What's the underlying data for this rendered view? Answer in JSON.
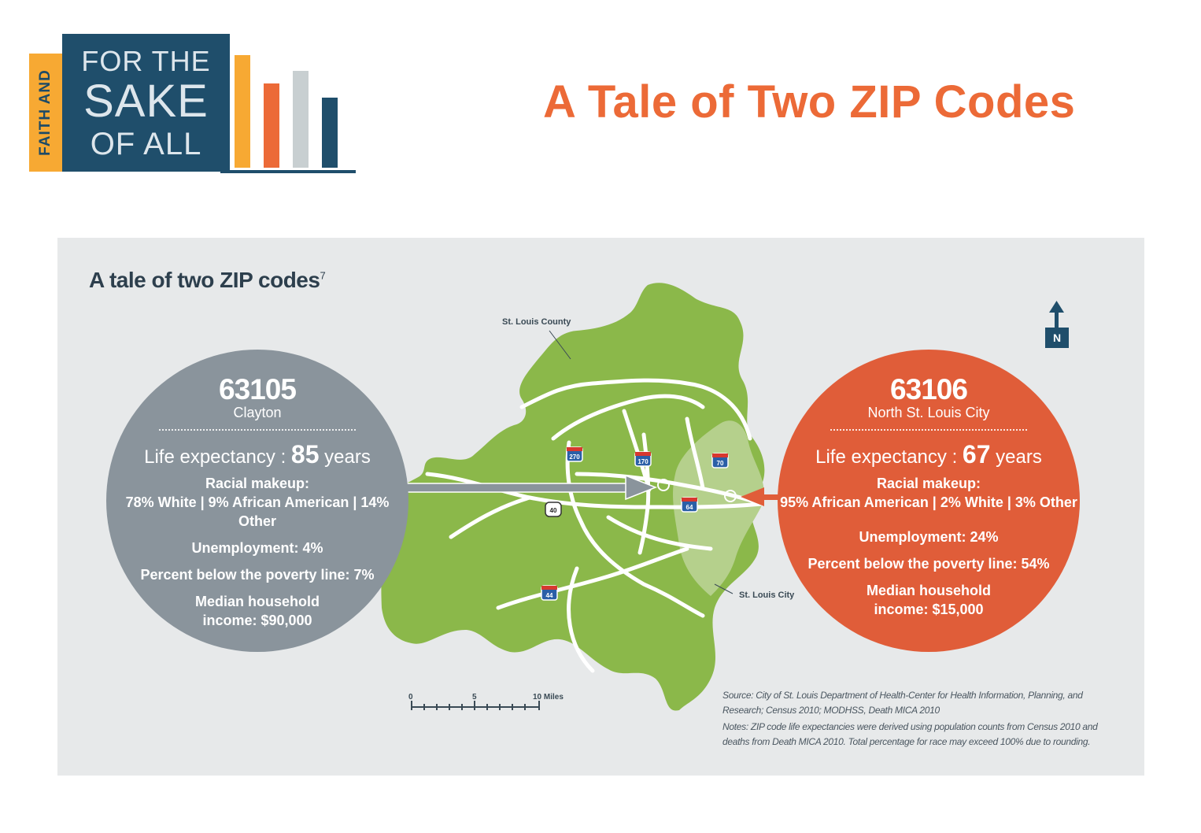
{
  "logo": {
    "side_text": "FAITH AND",
    "line1": "FOR THE",
    "line2": "SAKE",
    "line3": "OF ALL",
    "colors": {
      "navy": "#1f4e6b",
      "yellow": "#f7a933",
      "orange": "#ec6a37",
      "gray": "#c8cfd1"
    }
  },
  "page": {
    "title": "A Tale of Two ZIP Codes",
    "title_color": "#ec6a37"
  },
  "infographic": {
    "title": "A tale of two ZIP codes",
    "title_footnote": "7",
    "map": {
      "county_label": "St. Louis County",
      "city_label": "St. Louis City",
      "county_color": "#8bb84a",
      "city_color": "#b5d08c",
      "compass_label": "N",
      "highway_shields": [
        "270",
        "170",
        "70",
        "40",
        "64",
        "44"
      ],
      "scale": {
        "ticks": [
          "0",
          "5",
          "10 Miles"
        ]
      }
    },
    "left": {
      "zip": "63105",
      "place": "Clayton",
      "life_label": "Life expectancy :",
      "life_value": "85",
      "life_unit": "years",
      "racial_title": "Racial makeup:",
      "racial_detail": "78% White | 9% African American | 14% Other",
      "unemployment": "Unemployment: 4%",
      "poverty": "Percent below the poverty line: 7%",
      "income_line1": "Median household",
      "income_line2": "income: $90,000",
      "color": "#8a949c"
    },
    "right": {
      "zip": "63106",
      "place": "North St. Louis City",
      "life_label": "Life expectancy :",
      "life_value": "67",
      "life_unit": "years",
      "racial_title": "Racial makeup:",
      "racial_detail": "95% African American | 2% White | 3% Other",
      "unemployment": "Unemployment: 24%",
      "poverty": "Percent below the poverty line: 54%",
      "income_line1": "Median household",
      "income_line2": "income: $15,000",
      "color": "#e05d39"
    },
    "source": "Source: City of St. Louis Department of Health-Center for Health Information, Planning, and Research; Census 2010; MODHSS, Death MICA 2010",
    "notes": "Notes: ZIP code life expectancies were derived using population counts from Census 2010 and deaths from Death MICA 2010. Total percentage for race may exceed 100% due to rounding."
  }
}
